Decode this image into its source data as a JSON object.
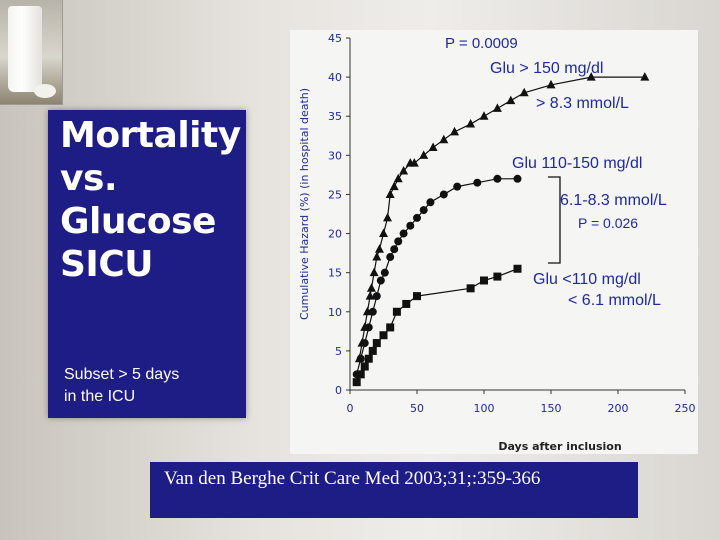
{
  "slide": {
    "title": "Mortality\nvs.\nGlucose\nSICU",
    "subtitle": "Subset > 5 days\nin the ICU",
    "reference": "Van den Berghe Crit Care Med 2003;31;:359-366"
  },
  "colors": {
    "title_box": "#1e1d86",
    "series": "#111111",
    "axis_text": "#1e2aa0"
  },
  "chart_data": {
    "type": "line",
    "xlabel": "Days    after    inclusion",
    "ylabel": "Cumulative Hazard (%) (in hospital death)",
    "xlim": [
      0,
      250
    ],
    "ylim": [
      0,
      45
    ],
    "xticks": [
      0,
      50,
      100,
      150,
      200,
      250
    ],
    "yticks": [
      0,
      5,
      10,
      15,
      20,
      25,
      30,
      35,
      40,
      45
    ],
    "grid": false,
    "series": [
      {
        "name": "Glu > 150 mg/dl",
        "name2": "> 8.3 mmol/L",
        "marker": "triangle",
        "x": [
          7,
          9,
          11,
          13,
          15,
          16,
          18,
          20,
          22,
          25,
          28,
          30,
          33,
          36,
          40,
          45,
          48,
          55,
          62,
          70,
          78,
          90,
          100,
          110,
          120,
          130,
          150,
          180,
          220
        ],
        "y": [
          4,
          6,
          8,
          10,
          12,
          13,
          15,
          17,
          18,
          20,
          22,
          25,
          26,
          27,
          28,
          29,
          29,
          30,
          31,
          32,
          33,
          34,
          35,
          36,
          37,
          38,
          39,
          40,
          40
        ]
      },
      {
        "name": "Glu 110-150 mg/dl",
        "name2": "6.1-8.3 mmol/L",
        "marker": "circle",
        "x": [
          5,
          8,
          11,
          14,
          17,
          20,
          23,
          26,
          30,
          33,
          36,
          40,
          45,
          50,
          55,
          60,
          70,
          80,
          95,
          110,
          125
        ],
        "y": [
          2,
          4,
          6,
          8,
          10,
          12,
          14,
          15,
          17,
          18,
          19,
          20,
          21,
          22,
          23,
          24,
          25,
          26,
          26.5,
          27,
          27
        ]
      },
      {
        "name": "Glu <110 mg/dl",
        "name2": "< 6.1 mmol/L",
        "marker": "square",
        "x": [
          5,
          8,
          11,
          14,
          17,
          20,
          25,
          30,
          35,
          42,
          50,
          90,
          100,
          110,
          125
        ],
        "y": [
          1,
          2,
          3,
          4,
          5,
          6,
          7,
          8,
          10,
          11,
          12,
          13,
          14,
          14.5,
          15.5
        ]
      }
    ],
    "annotations": [
      {
        "text": "P = 0.0009"
      },
      {
        "text": "P = 0.026"
      }
    ]
  }
}
